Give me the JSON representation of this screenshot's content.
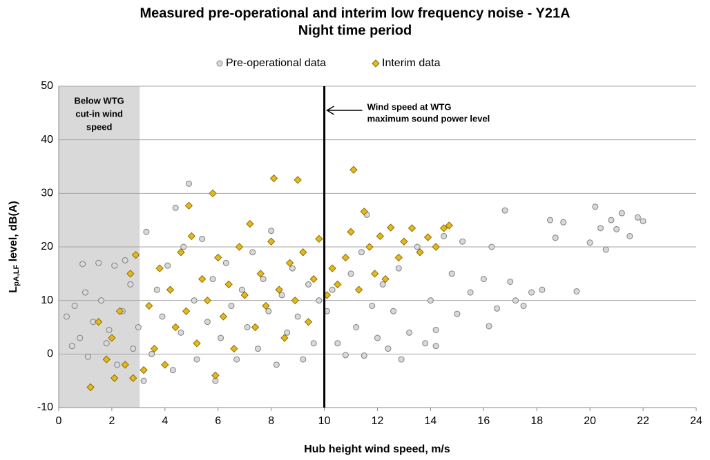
{
  "chart_data": {
    "type": "scatter",
    "title": [
      "Measured pre-operational and interim low frequency noise - Y21A",
      "Night time period"
    ],
    "x_label": "Hub height wind speed, m/s",
    "y_label": {
      "main": "L",
      "sub": "pA,LF",
      "rest": " level, dB(A)"
    },
    "xlim": [
      0,
      24
    ],
    "xticks": [
      0,
      2,
      4,
      6,
      8,
      10,
      12,
      14,
      16,
      18,
      20,
      22,
      24
    ],
    "ylim": [
      -10,
      50
    ],
    "yticks": [
      -10,
      0,
      10,
      20,
      30,
      40,
      50
    ],
    "grid": true,
    "legend": "top",
    "cut_in_speed": 3.05,
    "shade_label": [
      "Below WTG",
      "cut-in wind",
      "speed"
    ],
    "marker_line_x": 10,
    "line_label": [
      "Wind speed at WTG",
      "maximum sound power level"
    ],
    "series": [
      {
        "name": "Pre-operational data",
        "marker": "circle",
        "color": "#d9d9d9",
        "edge": "#7f7f7f",
        "x": [
          0.3,
          0.5,
          0.6,
          0.8,
          0.9,
          1.0,
          1.1,
          1.3,
          1.5,
          1.6,
          1.8,
          1.9,
          2.1,
          2.2,
          2.4,
          2.5,
          2.7,
          2.8,
          3.0,
          3.2,
          3.3,
          3.5,
          3.7,
          3.9,
          4.1,
          4.3,
          4.4,
          4.6,
          4.7,
          4.9,
          5.1,
          5.2,
          5.4,
          5.6,
          5.8,
          5.9,
          6.1,
          6.3,
          6.5,
          6.7,
          6.9,
          7.1,
          7.3,
          7.5,
          7.7,
          7.9,
          8.0,
          8.2,
          8.4,
          8.6,
          8.8,
          9.0,
          9.2,
          9.4,
          9.6,
          9.8,
          10.1,
          10.3,
          10.5,
          10.8,
          11.0,
          11.2,
          11.4,
          11.6,
          11.8,
          12.0,
          12.2,
          12.4,
          12.6,
          12.8,
          12.9,
          13.2,
          13.5,
          13.8,
          14.0,
          14.2,
          14.5,
          14.8,
          15.0,
          15.2,
          15.5,
          16.0,
          16.3,
          16.5,
          16.8,
          17.0,
          17.2,
          17.5,
          17.8,
          18.2,
          18.5,
          18.7,
          19.0,
          19.5,
          20.0,
          20.2,
          20.4,
          20.6,
          20.8,
          21.0,
          21.2,
          21.5,
          21.8,
          22.0,
          16.2,
          14.2,
          11.5
        ],
        "values": [
          7,
          1.5,
          9,
          3,
          16.8,
          11.5,
          -0.5,
          6,
          17,
          10,
          2,
          4.5,
          16.5,
          -2,
          8,
          17.5,
          13,
          1,
          5,
          -5,
          22.8,
          0,
          12,
          7,
          16.5,
          -3,
          27.3,
          4,
          20,
          31.8,
          10,
          -1,
          21.5,
          6,
          14,
          -5,
          3,
          17,
          9,
          -1,
          12,
          5,
          19,
          1,
          14,
          8,
          23,
          -2,
          11,
          4,
          16,
          7,
          -1,
          13,
          2,
          10,
          8,
          12,
          2,
          -0.2,
          15,
          5,
          19,
          26,
          9,
          3,
          13,
          1,
          8,
          16,
          -1,
          4,
          20,
          2,
          10,
          1.5,
          22,
          15,
          7.5,
          21,
          11.5,
          14,
          20,
          8.5,
          26.8,
          13.5,
          10,
          9,
          11.5,
          12,
          25,
          21.7,
          24.6,
          11.7,
          20.8,
          27.5,
          23.5,
          19.5,
          25,
          23.3,
          26.3,
          22,
          25.5,
          24.8,
          5.2,
          4.5,
          -0.3
        ]
      },
      {
        "name": "Interim data",
        "marker": "diamond",
        "color": "#e6b820",
        "edge": "#8c6d00",
        "x": [
          1.2,
          1.5,
          1.8,
          2.0,
          2.1,
          2.3,
          2.5,
          2.7,
          2.8,
          2.9,
          3.2,
          3.4,
          3.6,
          3.8,
          4.0,
          4.2,
          4.4,
          4.6,
          4.8,
          4.9,
          5.0,
          5.2,
          5.4,
          5.6,
          5.8,
          5.9,
          6.0,
          6.2,
          6.4,
          6.6,
          6.8,
          7.0,
          7.2,
          7.4,
          7.6,
          7.8,
          8.0,
          8.1,
          8.3,
          8.5,
          8.7,
          8.9,
          9.0,
          9.2,
          9.4,
          9.6,
          9.8,
          10.1,
          10.3,
          10.5,
          10.8,
          11.0,
          11.1,
          11.3,
          11.5,
          11.7,
          11.9,
          12.1,
          12.3,
          12.5,
          12.8,
          13.0,
          13.3,
          13.6,
          13.9,
          14.2,
          14.5,
          14.7
        ],
        "values": [
          -6.2,
          6,
          -1,
          3,
          -4.5,
          8,
          -2,
          15,
          -4.5,
          18.5,
          -3,
          9,
          1,
          16,
          -2,
          12,
          5,
          19,
          8,
          27.7,
          22,
          2,
          14,
          10,
          30,
          -4,
          18,
          7,
          13,
          1,
          20,
          11,
          24.3,
          5,
          15,
          9,
          21,
          32.8,
          12,
          3,
          17,
          10,
          32.5,
          19,
          6,
          14,
          21.5,
          11,
          16,
          13,
          18,
          22.8,
          34.4,
          12,
          26.6,
          20,
          15,
          22,
          14,
          23.6,
          18,
          21,
          23.5,
          19,
          21.8,
          20,
          23.5,
          24
        ]
      }
    ]
  }
}
